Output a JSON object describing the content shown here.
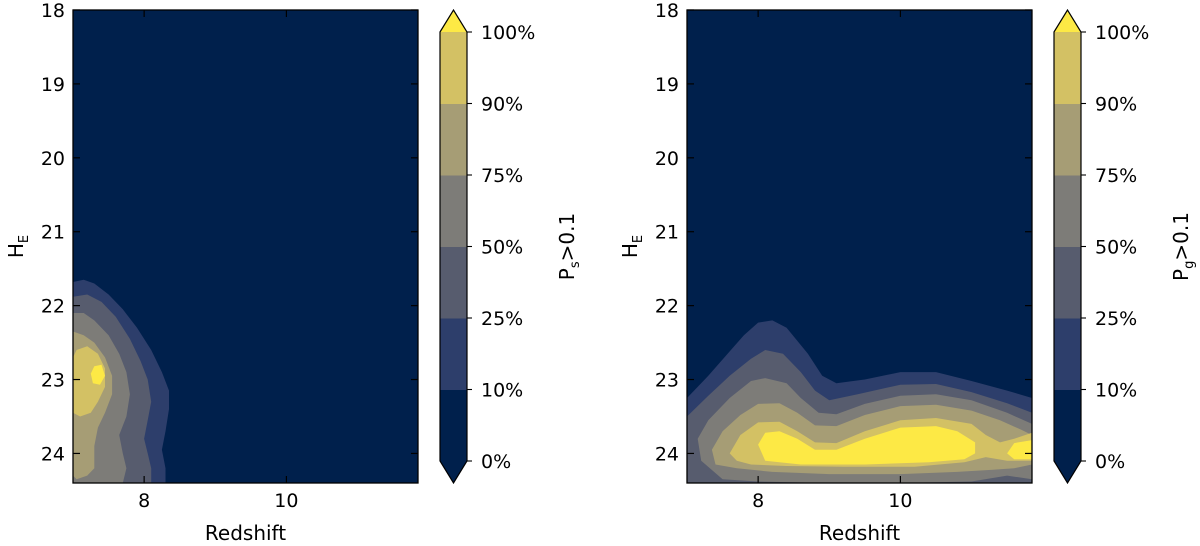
{
  "chart_data": [
    {
      "type": "heatmap",
      "plot": "contour",
      "xlabel": "Redshift",
      "ylabel": {
        "main": "H",
        "sub": "E"
      },
      "xlim": [
        7.0,
        11.85
      ],
      "ylim": [
        24.4,
        18.0
      ],
      "x_ticks": [
        8,
        10
      ],
      "y_ticks": [
        18,
        19,
        20,
        21,
        22,
        23,
        24
      ],
      "colorbar": {
        "label": {
          "main": "P",
          "sub": "s",
          "rest": ">0.1"
        },
        "levels": [
          "0%",
          "10%",
          "25%",
          "50%",
          "75%",
          "90%",
          "100%"
        ],
        "colors": [
          "#00204c",
          "#2d3e6b",
          "#575c6e",
          "#7d7c78",
          "#a69d75",
          "#d3c164",
          "#fde945"
        ],
        "extend": "both"
      },
      "regions": [
        {
          "level": "10%",
          "polygon": [
            [
              7.0,
              21.68
            ],
            [
              7.15,
              21.65
            ],
            [
              7.3,
              21.7
            ],
            [
              7.5,
              21.85
            ],
            [
              7.7,
              22.05
            ],
            [
              7.9,
              22.3
            ],
            [
              8.1,
              22.6
            ],
            [
              8.25,
              22.9
            ],
            [
              8.35,
              23.15
            ],
            [
              8.35,
              23.4
            ],
            [
              8.3,
              23.7
            ],
            [
              8.25,
              23.95
            ],
            [
              8.3,
              24.2
            ],
            [
              8.3,
              24.4
            ],
            [
              7.0,
              24.4
            ]
          ]
        },
        {
          "level": "25%",
          "polygon": [
            [
              7.0,
              21.88
            ],
            [
              7.2,
              21.85
            ],
            [
              7.4,
              21.95
            ],
            [
              7.6,
              22.15
            ],
            [
              7.8,
              22.45
            ],
            [
              7.95,
              22.75
            ],
            [
              8.05,
              23.0
            ],
            [
              8.1,
              23.3
            ],
            [
              8.05,
              23.55
            ],
            [
              8.0,
              23.8
            ],
            [
              8.05,
              24.0
            ],
            [
              8.1,
              24.2
            ],
            [
              8.1,
              24.4
            ],
            [
              7.0,
              24.4
            ]
          ]
        },
        {
          "level": "50%",
          "polygon": [
            [
              7.0,
              22.1
            ],
            [
              7.15,
              22.1
            ],
            [
              7.3,
              22.2
            ],
            [
              7.5,
              22.4
            ],
            [
              7.65,
              22.65
            ],
            [
              7.75,
              22.9
            ],
            [
              7.8,
              23.2
            ],
            [
              7.75,
              23.5
            ],
            [
              7.65,
              23.75
            ],
            [
              7.7,
              24.0
            ],
            [
              7.75,
              24.2
            ],
            [
              7.7,
              24.4
            ],
            [
              7.0,
              24.4
            ]
          ]
        },
        {
          "level": "75%",
          "polygon": [
            [
              7.0,
              22.35
            ],
            [
              7.15,
              22.4
            ],
            [
              7.3,
              22.5
            ],
            [
              7.45,
              22.7
            ],
            [
              7.55,
              22.95
            ],
            [
              7.55,
              23.2
            ],
            [
              7.45,
              23.45
            ],
            [
              7.35,
              23.65
            ],
            [
              7.3,
              23.9
            ],
            [
              7.3,
              24.2
            ],
            [
              7.2,
              24.3
            ],
            [
              7.05,
              24.35
            ],
            [
              7.0,
              24.3
            ]
          ]
        },
        {
          "level": "90%",
          "polygon": [
            [
              7.05,
              22.6
            ],
            [
              7.2,
              22.55
            ],
            [
              7.35,
              22.65
            ],
            [
              7.45,
              22.85
            ],
            [
              7.45,
              23.1
            ],
            [
              7.35,
              23.3
            ],
            [
              7.25,
              23.45
            ],
            [
              7.1,
              23.5
            ],
            [
              7.0,
              23.45
            ],
            [
              7.0,
              22.7
            ]
          ]
        },
        {
          "level": "100%",
          "polygon": [
            [
              7.3,
              22.82
            ],
            [
              7.4,
              22.8
            ],
            [
              7.45,
              22.95
            ],
            [
              7.38,
              23.07
            ],
            [
              7.28,
              23.05
            ],
            [
              7.25,
              22.92
            ]
          ]
        }
      ]
    },
    {
      "type": "heatmap",
      "plot": "contour",
      "xlabel": "Redshift",
      "ylabel": {
        "main": "H",
        "sub": "E"
      },
      "xlim": [
        7.0,
        11.85
      ],
      "ylim": [
        24.4,
        18.0
      ],
      "x_ticks": [
        8,
        10
      ],
      "y_ticks": [
        18,
        19,
        20,
        21,
        22,
        23,
        24
      ],
      "colorbar": {
        "label": {
          "main": "P",
          "sub": "g",
          "rest": ">0.1"
        },
        "levels": [
          "0%",
          "10%",
          "25%",
          "50%",
          "75%",
          "90%",
          "100%"
        ],
        "colors": [
          "#00204c",
          "#2d3e6b",
          "#575c6e",
          "#7d7c78",
          "#a69d75",
          "#d3c164",
          "#fde945"
        ],
        "extend": "both"
      },
      "regions": [
        {
          "level": "10%",
          "polygon": [
            [
              7.0,
              23.25
            ],
            [
              7.3,
              22.95
            ],
            [
              7.6,
              22.62
            ],
            [
              7.8,
              22.4
            ],
            [
              8.0,
              22.23
            ],
            [
              8.2,
              22.2
            ],
            [
              8.4,
              22.3
            ],
            [
              8.7,
              22.65
            ],
            [
              8.9,
              22.95
            ],
            [
              9.1,
              23.05
            ],
            [
              9.5,
              23.0
            ],
            [
              10.0,
              22.9
            ],
            [
              10.5,
              22.9
            ],
            [
              11.0,
              23.02
            ],
            [
              11.5,
              23.15
            ],
            [
              11.85,
              23.25
            ],
            [
              11.85,
              24.4
            ],
            [
              7.0,
              24.4
            ]
          ]
        },
        {
          "level": "25%",
          "polygon": [
            [
              7.0,
              23.5
            ],
            [
              7.3,
              23.22
            ],
            [
              7.6,
              22.95
            ],
            [
              7.9,
              22.72
            ],
            [
              8.1,
              22.6
            ],
            [
              8.35,
              22.65
            ],
            [
              8.6,
              22.9
            ],
            [
              8.8,
              23.15
            ],
            [
              9.0,
              23.28
            ],
            [
              9.4,
              23.2
            ],
            [
              10.0,
              23.07
            ],
            [
              10.5,
              23.06
            ],
            [
              11.0,
              23.17
            ],
            [
              11.5,
              23.32
            ],
            [
              11.85,
              23.45
            ],
            [
              11.85,
              24.4
            ],
            [
              7.0,
              24.4
            ]
          ]
        },
        {
          "level": "50%",
          "polygon": [
            [
              7.15,
              23.8
            ],
            [
              7.3,
              23.55
            ],
            [
              7.6,
              23.25
            ],
            [
              7.9,
              23.02
            ],
            [
              8.1,
              22.98
            ],
            [
              8.4,
              23.05
            ],
            [
              8.6,
              23.25
            ],
            [
              8.85,
              23.45
            ],
            [
              9.1,
              23.47
            ],
            [
              9.5,
              23.33
            ],
            [
              10.0,
              23.22
            ],
            [
              10.5,
              23.2
            ],
            [
              11.0,
              23.28
            ],
            [
              11.5,
              23.45
            ],
            [
              11.85,
              23.6
            ],
            [
              11.85,
              24.35
            ],
            [
              11.5,
              24.3
            ],
            [
              11.0,
              24.38
            ],
            [
              10.0,
              24.4
            ],
            [
              9.0,
              24.4
            ],
            [
              8.0,
              24.38
            ],
            [
              7.5,
              24.35
            ],
            [
              7.2,
              24.1
            ]
          ]
        },
        {
          "level": "75%",
          "polygon": [
            [
              7.35,
              23.95
            ],
            [
              7.5,
              23.7
            ],
            [
              7.75,
              23.48
            ],
            [
              8.0,
              23.33
            ],
            [
              8.3,
              23.32
            ],
            [
              8.55,
              23.45
            ],
            [
              8.8,
              23.62
            ],
            [
              9.1,
              23.63
            ],
            [
              9.5,
              23.48
            ],
            [
              10.0,
              23.36
            ],
            [
              10.5,
              23.34
            ],
            [
              11.0,
              23.42
            ],
            [
              11.4,
              23.55
            ],
            [
              11.7,
              23.68
            ],
            [
              11.85,
              23.75
            ],
            [
              11.85,
              24.15
            ],
            [
              11.6,
              24.2
            ],
            [
              11.3,
              24.22
            ],
            [
              10.8,
              24.25
            ],
            [
              10.0,
              24.28
            ],
            [
              9.0,
              24.28
            ],
            [
              8.2,
              24.25
            ],
            [
              7.7,
              24.2
            ],
            [
              7.4,
              24.15
            ]
          ]
        },
        {
          "level": "90%",
          "polygon": [
            [
              7.6,
              24.0
            ],
            [
              7.75,
              23.75
            ],
            [
              8.0,
              23.58
            ],
            [
              8.3,
              23.57
            ],
            [
              8.55,
              23.7
            ],
            [
              8.8,
              23.85
            ],
            [
              9.1,
              23.86
            ],
            [
              9.5,
              23.7
            ],
            [
              10.0,
              23.55
            ],
            [
              10.5,
              23.52
            ],
            [
              11.0,
              23.6
            ],
            [
              11.2,
              23.75
            ],
            [
              11.4,
              23.85
            ],
            [
              11.6,
              23.8
            ],
            [
              11.85,
              23.72
            ],
            [
              11.85,
              24.1
            ],
            [
              11.5,
              24.1
            ],
            [
              11.2,
              24.05
            ],
            [
              10.9,
              24.12
            ],
            [
              10.2,
              24.18
            ],
            [
              9.2,
              24.18
            ],
            [
              8.4,
              24.17
            ],
            [
              7.9,
              24.15
            ],
            [
              7.7,
              24.1
            ]
          ]
        },
        {
          "level": "100%",
          "polygon": [
            [
              8.0,
              23.88
            ],
            [
              8.1,
              23.72
            ],
            [
              8.3,
              23.7
            ],
            [
              8.55,
              23.8
            ],
            [
              8.8,
              23.95
            ],
            [
              9.1,
              23.95
            ],
            [
              9.5,
              23.8
            ],
            [
              10.0,
              23.65
            ],
            [
              10.5,
              23.63
            ],
            [
              10.8,
              23.7
            ],
            [
              11.05,
              23.85
            ],
            [
              11.05,
              24.0
            ],
            [
              10.9,
              24.08
            ],
            [
              10.4,
              24.12
            ],
            [
              9.5,
              24.15
            ],
            [
              8.6,
              24.15
            ],
            [
              8.1,
              24.1
            ]
          ]
        },
        {
          "level": "100%",
          "polygon": [
            [
              11.5,
              24.0
            ],
            [
              11.6,
              23.86
            ],
            [
              11.85,
              23.82
            ],
            [
              11.85,
              24.08
            ],
            [
              11.6,
              24.08
            ]
          ]
        }
      ]
    }
  ]
}
